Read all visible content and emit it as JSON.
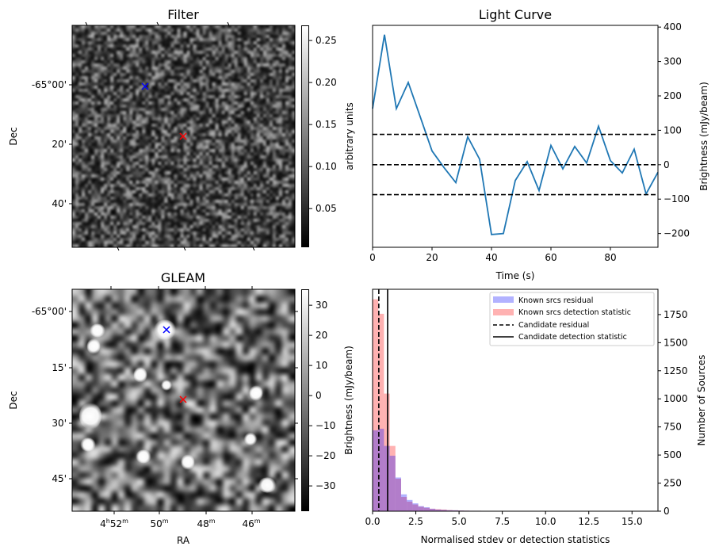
{
  "panels": {
    "filter": {
      "title": "Filter",
      "ylabel": "Dec",
      "dec_ticks": [
        "-65°00'",
        "20'",
        "40'"
      ],
      "colorbar": {
        "label": "arbitrary units",
        "ticks": [
          "0.25",
          "0.20",
          "0.15",
          "0.10",
          "0.05"
        ],
        "range": [
          0.004,
          0.268
        ],
        "tick_values": [
          0.25,
          0.2,
          0.15,
          0.1,
          0.05
        ]
      },
      "markers": [
        {
          "color": "#0000ff",
          "symbol": "x"
        },
        {
          "color": "#ff0000",
          "symbol": "x"
        }
      ]
    },
    "gleam": {
      "title": "GLEAM",
      "ylabel": "Dec",
      "xlabel": "RA",
      "dec_ticks": [
        "-65°00'",
        "15'",
        "30'",
        "45'"
      ],
      "ra_ticks": [
        {
          "h": "4",
          "hs": "h",
          "m": "52",
          "ms": "m"
        },
        {
          "m": "50",
          "ms": "m"
        },
        {
          "m": "48",
          "ms": "m"
        },
        {
          "m": "46",
          "ms": "m"
        }
      ],
      "colorbar": {
        "label": "Brightness (mJy/beam)",
        "ticks": [
          "30",
          "20",
          "10",
          "0",
          "−10",
          "−20",
          "−30"
        ],
        "range": [
          -38.4,
          35.3
        ],
        "tick_values": [
          30,
          20,
          10,
          0,
          -10,
          -20,
          -30
        ]
      },
      "markers": [
        {
          "color": "#0000ff",
          "symbol": "x"
        },
        {
          "color": "#ff0000",
          "symbol": "x"
        }
      ]
    }
  },
  "chart_data": [
    {
      "type": "line",
      "title": "Light Curve",
      "xlabel": "Time (s)",
      "ylabel": "Brightness (mJy/beam)",
      "xlim": [
        0,
        96
      ],
      "ylim": [
        -240,
        405
      ],
      "x_ticks": [
        "0",
        "20",
        "40",
        "60",
        "80"
      ],
      "x_tick_values": [
        0,
        20,
        40,
        60,
        80
      ],
      "y_ticks": [
        "−200",
        "−100",
        "0",
        "100",
        "200",
        "300",
        "400"
      ],
      "y_tick_values": [
        -200,
        -100,
        0,
        100,
        200,
        300,
        400
      ],
      "series": [
        {
          "name": "light curve",
          "color": "#1f77b4",
          "x": [
            0,
            4,
            8,
            12,
            16,
            20,
            24,
            28,
            32,
            36,
            40,
            44,
            48,
            52,
            56,
            60,
            64,
            68,
            72,
            76,
            80,
            84,
            88,
            92,
            96
          ],
          "y": [
            163,
            378,
            163,
            239,
            140,
            40,
            -8,
            -52,
            81,
            16,
            -203,
            -200,
            -46,
            9,
            -75,
            56,
            -12,
            53,
            5,
            112,
            12,
            -24,
            45,
            -85,
            -22
          ]
        }
      ],
      "hlines": [
        {
          "y": 88,
          "style": "dashed"
        },
        {
          "y": 0,
          "style": "dashed"
        },
        {
          "y": -87,
          "style": "dashed"
        }
      ]
    },
    {
      "type": "bar",
      "xlabel": "Normalised stdev or detection statistics",
      "ylabel_left": "Brightness (mJy/beam)",
      "ylabel": "Number of Sources",
      "xlim": [
        0,
        16.5
      ],
      "ylim": [
        0,
        1975
      ],
      "bin_width": 0.33,
      "x_ticks": [
        "0.0",
        "2.5",
        "5.0",
        "7.5",
        "10.0",
        "12.5",
        "15.0"
      ],
      "x_tick_values": [
        0,
        2.5,
        5,
        7.5,
        10,
        12.5,
        15
      ],
      "y_ticks": [
        "0",
        "250",
        "500",
        "750",
        "1000",
        "1250",
        "1500",
        "1750"
      ],
      "y_tick_values": [
        0,
        250,
        500,
        750,
        1000,
        1250,
        1500,
        1750
      ],
      "series": [
        {
          "name": "Known srcs residual",
          "color": "#0000ff",
          "alpha": 0.3,
          "values": [
            720,
            734,
            581,
            494,
            300,
            150,
            100,
            70,
            45,
            35,
            22,
            15,
            12,
            9,
            8,
            6,
            5,
            4,
            4,
            3,
            3,
            2,
            2,
            2,
            1,
            0,
            0,
            0,
            0,
            0,
            0,
            0,
            0,
            0,
            0,
            0,
            0,
            0,
            0,
            0,
            0,
            0,
            0,
            0,
            0,
            0,
            0,
            0,
            0,
            0
          ]
        },
        {
          "name": "Known srcs detection statistic",
          "color": "#ff0000",
          "alpha": 0.3,
          "values": [
            1886,
            1757,
            1047,
            581,
            289,
            127,
            85,
            60,
            40,
            30,
            22,
            18,
            15,
            10,
            8,
            6,
            5,
            4,
            4,
            3,
            3,
            2,
            2,
            0,
            0,
            0,
            0,
            0,
            0,
            0,
            0,
            0,
            0,
            0,
            0,
            0,
            0,
            3,
            0,
            0,
            0,
            0,
            0,
            0,
            0,
            3,
            0,
            0,
            0,
            0
          ]
        }
      ],
      "vlines": [
        {
          "name": "Candidate residual",
          "x": 0.36,
          "style": "dashed"
        },
        {
          "name": "Candidate detection statistic",
          "x": 0.87,
          "style": "solid"
        }
      ],
      "legend": {
        "placement": "top-right",
        "entries": [
          "Known srcs residual",
          "Known srcs detection statistic",
          "Candidate residual",
          "Candidate detection statistic"
        ]
      }
    }
  ]
}
